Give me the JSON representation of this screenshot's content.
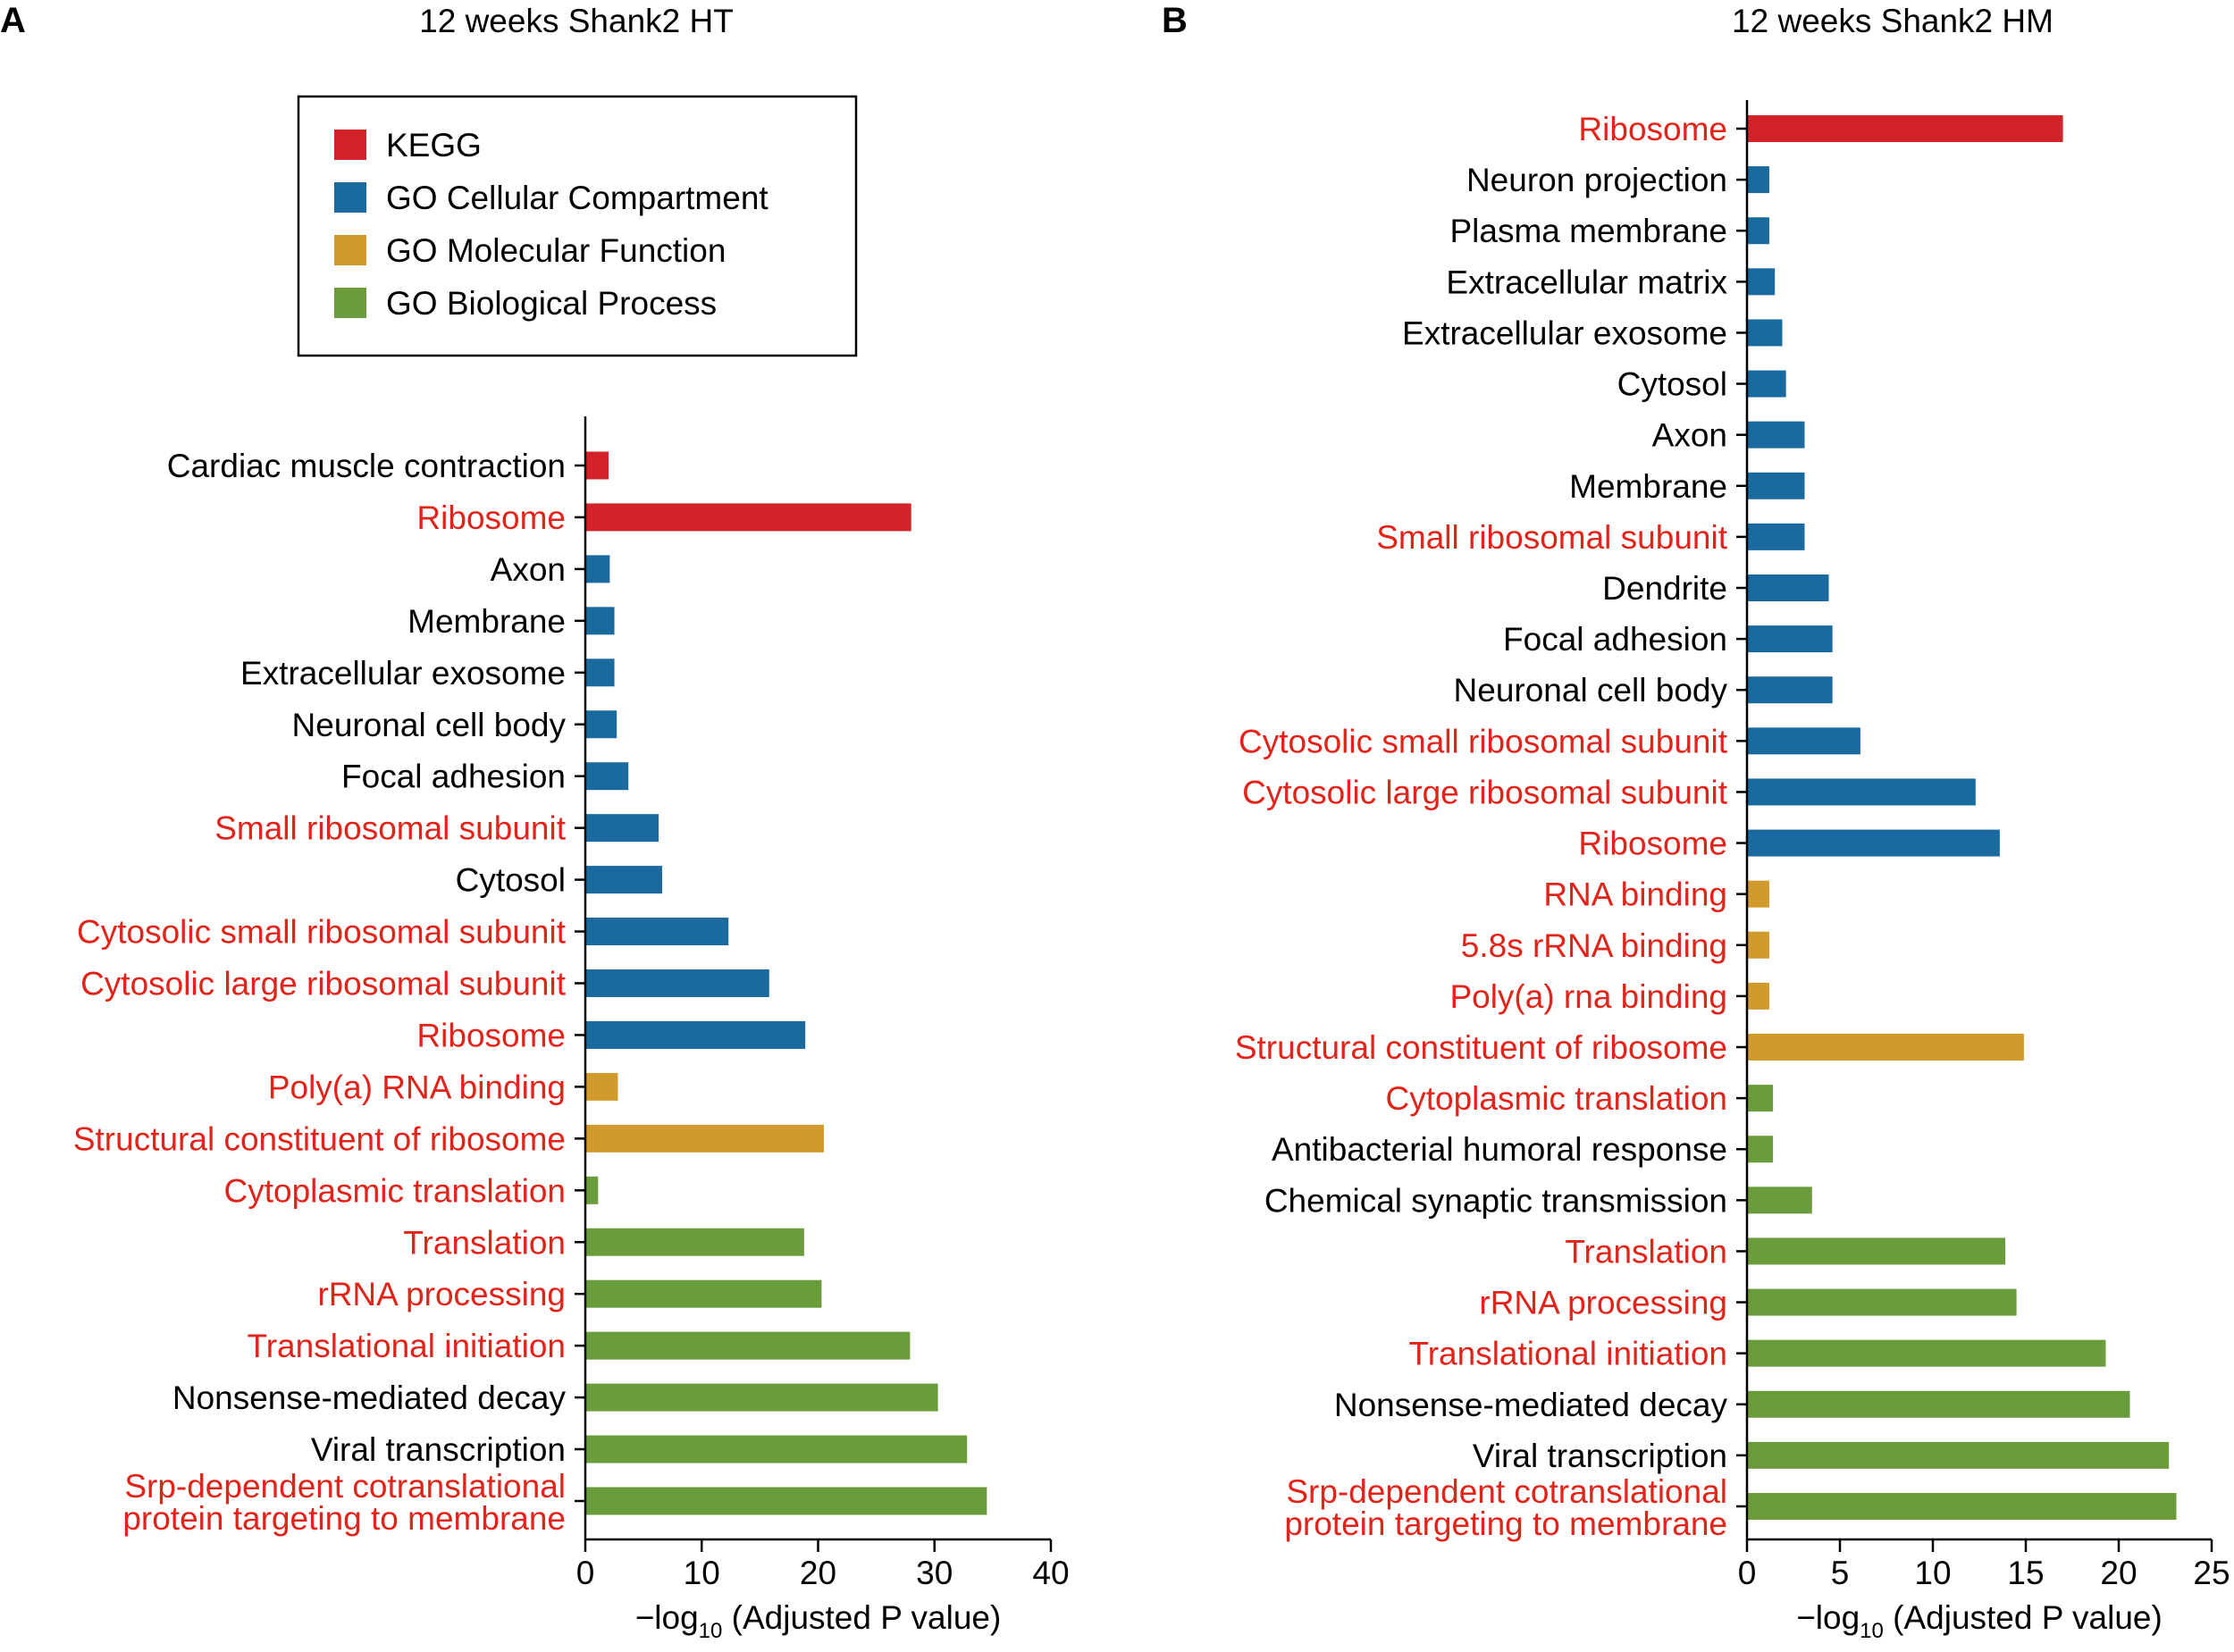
{
  "colors": {
    "kegg": "#d2232a",
    "cc": "#1a6aa0",
    "mf": "#d09b2c",
    "bp": "#6a9c3c",
    "highlight_text": "#e2231a",
    "normal_text": "#000000"
  },
  "legend": {
    "items": [
      {
        "label": "KEGG",
        "category": "kegg"
      },
      {
        "label": "GO Cellular Compartment",
        "category": "cc"
      },
      {
        "label": "GO Molecular Function",
        "category": "mf"
      },
      {
        "label": "GO Biological Process",
        "category": "bp"
      }
    ]
  },
  "chart_data": [
    {
      "type": "bar",
      "orientation": "horizontal",
      "panel_letter": "A",
      "title": "12 weeks Shank2 HT",
      "xlabel_prefix": "−log",
      "xlabel_sub": "10",
      "xlabel_suffix": " (Adjusted P value)",
      "xlim": [
        0,
        40
      ],
      "xticks": [
        0,
        10,
        20,
        30,
        40
      ],
      "categories": [
        {
          "label": "Cardiac muscle contraction",
          "value": 2.0,
          "category": "kegg",
          "highlight": false
        },
        {
          "label": "Ribosome",
          "value": 28.0,
          "category": "kegg",
          "highlight": true
        },
        {
          "label": "Axon",
          "value": 2.1,
          "category": "cc",
          "highlight": false
        },
        {
          "label": "Membrane",
          "value": 2.5,
          "category": "cc",
          "highlight": false
        },
        {
          "label": "Extracellular exosome",
          "value": 2.5,
          "category": "cc",
          "highlight": false
        },
        {
          "label": "Neuronal cell body",
          "value": 2.7,
          "category": "cc",
          "highlight": false
        },
        {
          "label": "Focal adhesion",
          "value": 3.7,
          "category": "cc",
          "highlight": false
        },
        {
          "label": "Small ribosomal subunit",
          "value": 6.3,
          "category": "cc",
          "highlight": true
        },
        {
          "label": "Cytosol",
          "value": 6.6,
          "category": "cc",
          "highlight": false
        },
        {
          "label": "Cytosolic small ribosomal subunit",
          "value": 12.3,
          "category": "cc",
          "highlight": true
        },
        {
          "label": "Cytosolic large ribosomal subunit",
          "value": 15.8,
          "category": "cc",
          "highlight": true
        },
        {
          "label": "Ribosome",
          "value": 18.9,
          "category": "cc",
          "highlight": true
        },
        {
          "label": "Poly(a) RNA binding",
          "value": 2.8,
          "category": "mf",
          "highlight": true
        },
        {
          "label": "Structural constituent of ribosome",
          "value": 20.5,
          "category": "mf",
          "highlight": true
        },
        {
          "label": "Cytoplasmic translation",
          "value": 1.1,
          "category": "bp",
          "highlight": true
        },
        {
          "label": "Translation",
          "value": 18.8,
          "category": "bp",
          "highlight": true
        },
        {
          "label": "rRNA processing",
          "value": 20.3,
          "category": "bp",
          "highlight": true
        },
        {
          "label": "Translational initiation",
          "value": 27.9,
          "category": "bp",
          "highlight": true
        },
        {
          "label": "Nonsense-mediated decay",
          "value": 30.3,
          "category": "bp",
          "highlight": false
        },
        {
          "label": "Viral transcription",
          "value": 32.8,
          "category": "bp",
          "highlight": false
        },
        {
          "label": [
            "Srp-dependent cotranslational",
            "protein targeting to membrane"
          ],
          "value": 34.5,
          "category": "bp",
          "highlight": true
        }
      ]
    },
    {
      "type": "bar",
      "orientation": "horizontal",
      "panel_letter": "B",
      "title": "12 weeks Shank2 HM",
      "xlabel_prefix": "−log",
      "xlabel_sub": "10",
      "xlabel_suffix": " (Adjusted P value)",
      "xlim": [
        0,
        25
      ],
      "xticks": [
        0,
        5,
        10,
        15,
        20,
        25
      ],
      "categories": [
        {
          "label": "Ribosome",
          "value": 17.0,
          "category": "kegg",
          "highlight": true
        },
        {
          "label": "Neuron projection",
          "value": 1.2,
          "category": "cc",
          "highlight": false
        },
        {
          "label": "Plasma membrane",
          "value": 1.2,
          "category": "cc",
          "highlight": false
        },
        {
          "label": "Extracellular matrix",
          "value": 1.5,
          "category": "cc",
          "highlight": false
        },
        {
          "label": "Extracellular exosome",
          "value": 1.9,
          "category": "cc",
          "highlight": false
        },
        {
          "label": "Cytosol",
          "value": 2.1,
          "category": "cc",
          "highlight": false
        },
        {
          "label": "Axon",
          "value": 3.1,
          "category": "cc",
          "highlight": false
        },
        {
          "label": "Membrane",
          "value": 3.1,
          "category": "cc",
          "highlight": false
        },
        {
          "label": "Small ribosomal subunit",
          "value": 3.1,
          "category": "cc",
          "highlight": true
        },
        {
          "label": "Dendrite",
          "value": 4.4,
          "category": "cc",
          "highlight": false
        },
        {
          "label": "Focal adhesion",
          "value": 4.6,
          "category": "cc",
          "highlight": false
        },
        {
          "label": "Neuronal cell body",
          "value": 4.6,
          "category": "cc",
          "highlight": false
        },
        {
          "label": "Cytosolic small ribosomal subunit",
          "value": 6.1,
          "category": "cc",
          "highlight": true
        },
        {
          "label": "Cytosolic large ribosomal subunit",
          "value": 12.3,
          "category": "cc",
          "highlight": true
        },
        {
          "label": "Ribosome",
          "value": 13.6,
          "category": "cc",
          "highlight": true
        },
        {
          "label": "RNA binding",
          "value": 1.2,
          "category": "mf",
          "highlight": true
        },
        {
          "label": "5.8s rRNA binding",
          "value": 1.2,
          "category": "mf",
          "highlight": true
        },
        {
          "label": "Poly(a) rna binding",
          "value": 1.2,
          "category": "mf",
          "highlight": true
        },
        {
          "label": "Structural constituent of ribosome",
          "value": 14.9,
          "category": "mf",
          "highlight": true
        },
        {
          "label": "Cytoplasmic translation",
          "value": 1.4,
          "category": "bp",
          "highlight": true
        },
        {
          "label": "Antibacterial humoral response",
          "value": 1.4,
          "category": "bp",
          "highlight": false
        },
        {
          "label": "Chemical synaptic transmission",
          "value": 3.5,
          "category": "bp",
          "highlight": false
        },
        {
          "label": "Translation",
          "value": 13.9,
          "category": "bp",
          "highlight": true
        },
        {
          "label": "rRNA processing",
          "value": 14.5,
          "category": "bp",
          "highlight": true
        },
        {
          "label": "Translational initiation",
          "value": 19.3,
          "category": "bp",
          "highlight": true
        },
        {
          "label": "Nonsense-mediated decay",
          "value": 20.6,
          "category": "bp",
          "highlight": false
        },
        {
          "label": "Viral transcription",
          "value": 22.7,
          "category": "bp",
          "highlight": false
        },
        {
          "label": [
            "Srp-dependent cotranslational",
            "protein targeting to membrane"
          ],
          "value": 23.1,
          "category": "bp",
          "highlight": true
        }
      ]
    }
  ]
}
